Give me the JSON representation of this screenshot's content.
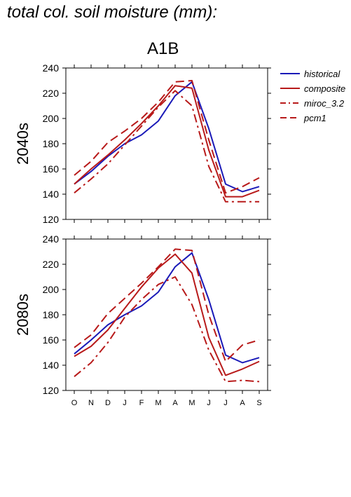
{
  "header": {
    "title": "total col. soil moisture (mm):",
    "scenario": "A1B"
  },
  "colors": {
    "historical": "#1a1ab8",
    "composite": "#b81a1a",
    "miroc_3.2": "#b81a1a",
    "pcm1": "#b81a1a"
  },
  "chart_data": [
    {
      "type": "line",
      "panel_label": "2040s",
      "categories": [
        "O",
        "N",
        "D",
        "J",
        "F",
        "M",
        "A",
        "M",
        "J",
        "J",
        "A",
        "S"
      ],
      "ylim": [
        120,
        240
      ],
      "yticks": [
        120,
        140,
        160,
        180,
        200,
        220,
        240
      ],
      "legend_position": "right",
      "series": [
        {
          "name": "historical",
          "style": "solid",
          "color": "#1a1ab8",
          "values": [
            148,
            158,
            170,
            180,
            187,
            198,
            218,
            229,
            192,
            148,
            142,
            146
          ]
        },
        {
          "name": "composite",
          "style": "solid",
          "color": "#b81a1a",
          "values": [
            148,
            160,
            171,
            183,
            196,
            210,
            226,
            224,
            175,
            138,
            138,
            143
          ]
        },
        {
          "name": "miroc_3.2",
          "style": "dashdot",
          "color": "#b81a1a",
          "values": [
            141,
            152,
            164,
            179,
            194,
            209,
            222,
            210,
            162,
            134,
            134,
            134
          ]
        },
        {
          "name": "pcm1",
          "style": "dashed",
          "color": "#b81a1a",
          "values": [
            155,
            166,
            181,
            190,
            200,
            213,
            229,
            230,
            183,
            141,
            146,
            153
          ]
        }
      ]
    },
    {
      "type": "line",
      "panel_label": "2080s",
      "categories": [
        "O",
        "N",
        "D",
        "J",
        "F",
        "M",
        "A",
        "M",
        "J",
        "J",
        "A",
        "S"
      ],
      "ylim": [
        120,
        240
      ],
      "yticks": [
        120,
        140,
        160,
        180,
        200,
        220,
        240
      ],
      "series": [
        {
          "name": "historical",
          "style": "solid",
          "color": "#1a1ab8",
          "values": [
            149,
            160,
            172,
            180,
            187,
            198,
            218,
            229,
            192,
            148,
            142,
            146
          ]
        },
        {
          "name": "composite",
          "style": "solid",
          "color": "#b81a1a",
          "values": [
            147,
            155,
            168,
            185,
            202,
            217,
            228,
            213,
            162,
            132,
            137,
            143
          ]
        },
        {
          "name": "miroc_3.2",
          "style": "dashdot",
          "color": "#b81a1a",
          "values": [
            131,
            142,
            158,
            178,
            192,
            204,
            210,
            188,
            152,
            127,
            128,
            127
          ]
        },
        {
          "name": "pcm1",
          "style": "dashed",
          "color": "#b81a1a",
          "values": [
            154,
            164,
            181,
            193,
            205,
            218,
            232,
            231,
            180,
            143,
            156,
            160
          ]
        }
      ]
    }
  ]
}
